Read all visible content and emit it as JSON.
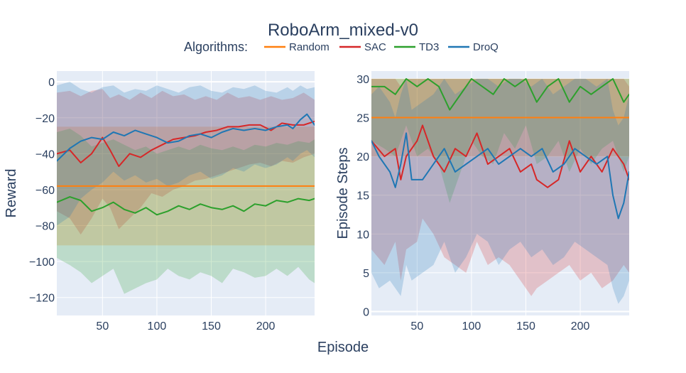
{
  "title": "RoboArm_mixed-v0",
  "legend": {
    "title": "Algorithms:",
    "placement": "top-center, horizontal",
    "items": [
      {
        "name": "Random",
        "color": "#ff7f0e"
      },
      {
        "name": "SAC",
        "color": "#d62728"
      },
      {
        "name": "TD3",
        "color": "#2ca02c"
      },
      {
        "name": "DroQ",
        "color": "#1f77b4"
      }
    ]
  },
  "shared_xlabel": "Episode",
  "chart_data": [
    {
      "type": "line",
      "ylabel": "Reward",
      "xlim": [
        8,
        245
      ],
      "ylim": [
        -130,
        6
      ],
      "xticks": [
        50,
        100,
        150,
        200
      ],
      "yticks": [
        0,
        -20,
        -40,
        -60,
        -80,
        -100,
        -120
      ],
      "ytick_labels": [
        "0",
        "−20",
        "−40",
        "−60",
        "−80",
        "−100",
        "−120"
      ],
      "grid": true,
      "plot_bg": "#e5ecf6",
      "band_opacity": 0.22,
      "series": [
        {
          "name": "Random",
          "color": "#ff7f0e",
          "x": [
            8,
            245
          ],
          "mean": [
            -58,
            -58
          ],
          "upper": [
            -25,
            -25
          ],
          "lower": [
            -91,
            -91
          ]
        },
        {
          "name": "SAC",
          "color": "#d62728",
          "x": [
            8,
            20,
            30,
            40,
            50,
            57,
            65,
            75,
            85,
            95,
            105,
            115,
            125,
            135,
            145,
            155,
            165,
            175,
            185,
            195,
            205,
            215,
            225,
            235,
            245
          ],
          "mean": [
            -40,
            -38,
            -45,
            -40,
            -31,
            -38,
            -47,
            -40,
            -42,
            -38,
            -35,
            -32,
            -31,
            -30,
            -28,
            -27,
            -25,
            -25,
            -24,
            -24,
            -27,
            -23,
            -24,
            -24,
            -22
          ],
          "upper": [
            -6,
            -5,
            -8,
            -5,
            -4,
            -9,
            -7,
            -10,
            -6,
            -9,
            -5,
            -8,
            -7,
            -10,
            -8,
            -10,
            -6,
            -9,
            -8,
            -10,
            -8,
            -10,
            -9,
            -6,
            -10
          ],
          "lower": [
            -72,
            -76,
            -85,
            -76,
            -65,
            -70,
            -82,
            -76,
            -70,
            -62,
            -64,
            -60,
            -58,
            -55,
            -54,
            -52,
            -50,
            -48,
            -46,
            -45,
            -47,
            -44,
            -45,
            -42,
            -40
          ]
        },
        {
          "name": "TD3",
          "color": "#2ca02c",
          "x": [
            8,
            20,
            30,
            40,
            50,
            60,
            70,
            80,
            90,
            100,
            110,
            120,
            130,
            140,
            150,
            160,
            170,
            180,
            190,
            200,
            210,
            220,
            230,
            240,
            245
          ],
          "mean": [
            -67,
            -64,
            -66,
            -72,
            -70,
            -67,
            -71,
            -73,
            -70,
            -74,
            -72,
            -69,
            -71,
            -68,
            -70,
            -71,
            -69,
            -72,
            -68,
            -69,
            -66,
            -67,
            -65,
            -66,
            -65
          ],
          "upper": [
            -28,
            -26,
            -30,
            -36,
            -34,
            -32,
            -35,
            -38,
            -36,
            -40,
            -38,
            -36,
            -38,
            -35,
            -37,
            -38,
            -36,
            -38,
            -35,
            -36,
            -34,
            -35,
            -33,
            -34,
            -32
          ],
          "lower": [
            -98,
            -102,
            -106,
            -112,
            -108,
            -104,
            -118,
            -115,
            -112,
            -110,
            -104,
            -108,
            -110,
            -106,
            -108,
            -112,
            -104,
            -106,
            -109,
            -108,
            -104,
            -108,
            -103,
            -110,
            -112
          ]
        },
        {
          "name": "DroQ",
          "color": "#1f77b4",
          "x": [
            8,
            20,
            30,
            40,
            50,
            60,
            70,
            80,
            90,
            100,
            110,
            120,
            130,
            140,
            150,
            160,
            170,
            180,
            190,
            200,
            210,
            220,
            225,
            232,
            238,
            245
          ],
          "mean": [
            -44,
            -37,
            -33,
            -31,
            -32,
            -28,
            -30,
            -27,
            -29,
            -31,
            -34,
            -33,
            -30,
            -29,
            -31,
            -28,
            -26,
            -27,
            -26,
            -27,
            -25,
            -24,
            -26,
            -21,
            -18,
            -24
          ],
          "upper": [
            -2,
            0,
            -4,
            -6,
            -3,
            -2,
            -6,
            -4,
            -5,
            -2,
            -4,
            -6,
            -3,
            -2,
            -5,
            -6,
            -3,
            -4,
            -2,
            -5,
            -6,
            -3,
            -5,
            -2,
            -4,
            -3
          ],
          "lower": [
            -80,
            -75,
            -65,
            -60,
            -56,
            -50,
            -55,
            -52,
            -56,
            -54,
            -58,
            -56,
            -52,
            -50,
            -54,
            -52,
            -48,
            -50,
            -46,
            -48,
            -46,
            -42,
            -44,
            -40,
            -38,
            -42
          ]
        }
      ]
    },
    {
      "type": "line",
      "ylabel": "Episode Steps",
      "xlim": [
        8,
        245
      ],
      "ylim": [
        -0.5,
        31
      ],
      "xticks": [
        50,
        100,
        150,
        200
      ],
      "yticks": [
        0,
        5,
        10,
        15,
        20,
        25,
        30
      ],
      "ytick_labels": [
        "0",
        "5",
        "10",
        "15",
        "20",
        "25",
        "30"
      ],
      "grid": true,
      "plot_bg": "#e5ecf6",
      "band_opacity": 0.22,
      "series": [
        {
          "name": "Random",
          "color": "#ff7f0e",
          "x": [
            8,
            245
          ],
          "mean": [
            25,
            25
          ],
          "upper": [
            30,
            30
          ],
          "lower": [
            20,
            20
          ]
        },
        {
          "name": "SAC",
          "color": "#d62728",
          "x": [
            8,
            20,
            30,
            35,
            40,
            50,
            55,
            65,
            75,
            85,
            95,
            105,
            115,
            125,
            135,
            145,
            155,
            160,
            170,
            180,
            190,
            200,
            210,
            220,
            230,
            240,
            245
          ],
          "mean": [
            22,
            20,
            21,
            17,
            20,
            22,
            24,
            20,
            18,
            21,
            20,
            23,
            19,
            20,
            21,
            18,
            19,
            17,
            16,
            17,
            22,
            18,
            20,
            18,
            21,
            19,
            17
          ],
          "upper": [
            30,
            30,
            30,
            29,
            30,
            30,
            30,
            30,
            30,
            30,
            30,
            30,
            30,
            30,
            30,
            30,
            30,
            30,
            30,
            30,
            30,
            30,
            30,
            30,
            30,
            30,
            29
          ],
          "lower": [
            8,
            6,
            9,
            4,
            8,
            9,
            12,
            10,
            7,
            6,
            5,
            9,
            6,
            7,
            6,
            4,
            2,
            3,
            4,
            5,
            6,
            4,
            5,
            3,
            4,
            6,
            5
          ]
        },
        {
          "name": "TD3",
          "color": "#2ca02c",
          "x": [
            8,
            20,
            30,
            40,
            50,
            60,
            70,
            80,
            90,
            100,
            110,
            120,
            130,
            140,
            150,
            160,
            170,
            180,
            190,
            200,
            210,
            220,
            230,
            240,
            245
          ],
          "mean": [
            29,
            29,
            28,
            30,
            29,
            30,
            29,
            26,
            28,
            30,
            29,
            28,
            30,
            29,
            30,
            27,
            29,
            30,
            27,
            29,
            28,
            29,
            30,
            27,
            28
          ],
          "upper": [
            30,
            30,
            30,
            30,
            30,
            30,
            30,
            30,
            30,
            30,
            30,
            30,
            30,
            30,
            30,
            30,
            30,
            30,
            30,
            30,
            30,
            30,
            30,
            30,
            30
          ],
          "lower": [
            22,
            21,
            20,
            24,
            20,
            21,
            19,
            14,
            18,
            22,
            20,
            19,
            23,
            21,
            24,
            19,
            20,
            22,
            18,
            21,
            19,
            21,
            22,
            18,
            20
          ]
        },
        {
          "name": "DroQ",
          "color": "#1f77b4",
          "x": [
            8,
            15,
            25,
            30,
            35,
            40,
            45,
            55,
            65,
            75,
            85,
            95,
            105,
            115,
            125,
            135,
            145,
            155,
            165,
            175,
            185,
            195,
            205,
            215,
            225,
            230,
            235,
            240,
            245
          ],
          "mean": [
            22,
            20,
            18,
            16,
            19,
            23,
            17,
            17,
            19,
            21,
            18,
            19,
            20,
            21,
            19,
            20,
            21,
            20,
            21,
            18,
            19,
            21,
            20,
            19,
            20,
            15,
            12,
            14,
            18
          ],
          "upper": [
            28,
            29,
            27,
            25,
            28,
            30,
            26,
            27,
            28,
            30,
            28,
            29,
            30,
            30,
            29,
            30,
            30,
            29,
            30,
            28,
            29,
            30,
            30,
            29,
            30,
            26,
            24,
            25,
            28
          ],
          "lower": [
            5,
            3,
            4,
            3,
            2,
            6,
            4,
            5,
            6,
            9,
            5,
            7,
            10,
            9,
            6,
            8,
            9,
            7,
            8,
            6,
            7,
            9,
            8,
            7,
            6,
            3,
            1,
            2,
            4
          ]
        }
      ]
    }
  ]
}
